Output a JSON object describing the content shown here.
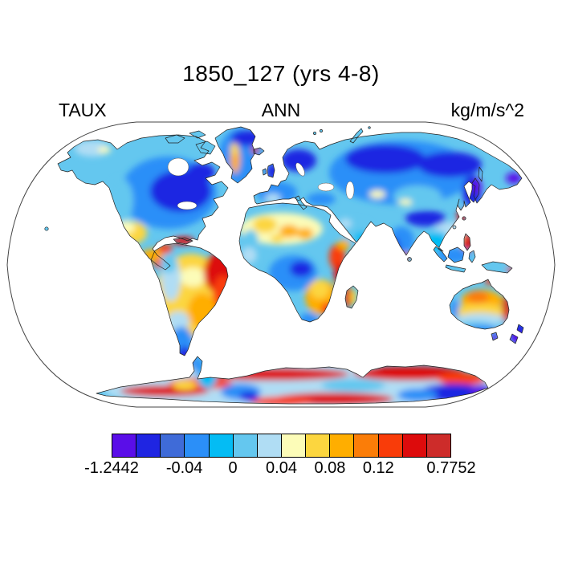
{
  "title": "1850_127 (yrs 4-8)",
  "header": {
    "variable": "TAUX",
    "season": "ANN",
    "units": "kg/m/s^2"
  },
  "colorbar": {
    "n_cells": 14,
    "colors": [
      "#5A0EE8",
      "#1F25E2",
      "#3F6BD8",
      "#2B8FF8",
      "#04BCF4",
      "#64C7EF",
      "#B0DDF4",
      "#FCFCB8",
      "#FCD63F",
      "#FFAE00",
      "#FB7D08",
      "#F93C09",
      "#DD0B0C",
      "#CD2C2A"
    ],
    "ticks": [
      {
        "label": "-1.2442",
        "boundary_index": 0
      },
      {
        "label": "-0.04",
        "boundary_index": 3
      },
      {
        "label": "0",
        "boundary_index": 5
      },
      {
        "label": "0.04",
        "boundary_index": 7
      },
      {
        "label": "0.08",
        "boundary_index": 9
      },
      {
        "label": "0.12",
        "boundary_index": 11
      },
      {
        "label": "0.7752",
        "boundary_index": 14
      }
    ]
  },
  "map": {
    "projection": "robinson",
    "ocean_color": "#FFFFFF",
    "outline_color": "#2B2B2B"
  },
  "chart_data": {
    "type": "heatmap",
    "subtype": "filled-contour global map (Robinson projection, values over land only, ocean masked white)",
    "title": "1850_127 (yrs 4-8)",
    "variable": "TAUX",
    "season": "ANN",
    "units": "kg/m/s^2",
    "value_min": -1.2442,
    "value_max": 0.7752,
    "labeled_levels": [
      -1.2442,
      -0.04,
      0,
      0.04,
      0.08,
      0.12,
      0.7752
    ],
    "palette": [
      "#5A0EE8",
      "#1F25E2",
      "#3F6BD8",
      "#2B8FF8",
      "#04BCF4",
      "#64C7EF",
      "#B0DDF4",
      "#FCFCB8",
      "#FCD63F",
      "#FFAE00",
      "#FB7D08",
      "#F93C09",
      "#DD0B0C",
      "#CD2C2A"
    ],
    "legend_position": "bottom horizontal label bar",
    "qualitative_field": [
      {
        "region": "Canada / eastern North America",
        "value": "strong negative (dark blue)"
      },
      {
        "region": "Alaska",
        "value": "weak negative (pale blue) with small pale-yellow patch"
      },
      {
        "region": "SW United States / Mexico",
        "value": "weak positive (yellow)"
      },
      {
        "region": "Central America / Caribbean",
        "value": "strong positive (orange-red)"
      },
      {
        "region": "Greenland",
        "value": "negative with yellow-orange streak in west"
      },
      {
        "region": "NE South America (Brazil)",
        "value": "strong positive (red/orange)"
      },
      {
        "region": "western Amazon / Andes flank",
        "value": "weak negative (pale blue)"
      },
      {
        "region": "Patagonia / New Zealand / Japan",
        "value": "strong negative (dark blue/violet)"
      },
      {
        "region": "Sahara",
        "value": "weak positive (pale yellow with orange spots)"
      },
      {
        "region": "Congo basin",
        "value": "negative (blue)"
      },
      {
        "region": "East & southern Africa, Madagascar",
        "value": "positive (orange/red)"
      },
      {
        "region": "Siberia / Eurasia",
        "value": "negative (blue to dark blue)"
      },
      {
        "region": "China coast / Philippines",
        "value": "strong positive red fringe"
      },
      {
        "region": "central Australia",
        "value": "positive (yellow/orange), red east-coast fringe"
      },
      {
        "region": "Antarctica",
        "value": "strong positive red coastal bands with negative (blue) interior sectors"
      }
    ]
  }
}
